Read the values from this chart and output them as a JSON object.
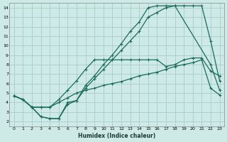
{
  "xlabel": "Humidex (Indice chaleur)",
  "bg_color": "#ceeae6",
  "grid_color": "#a8ccc8",
  "line_color": "#1a6b5a",
  "xlim": [
    -0.5,
    23.5
  ],
  "ylim": [
    1.5,
    14.5
  ],
  "xticks": [
    0,
    1,
    2,
    3,
    4,
    5,
    6,
    7,
    8,
    9,
    10,
    11,
    12,
    13,
    14,
    15,
    16,
    17,
    18,
    19,
    20,
    21,
    22,
    23
  ],
  "yticks": [
    2,
    3,
    4,
    5,
    6,
    7,
    8,
    9,
    10,
    11,
    12,
    13,
    14
  ],
  "line_peak_x": [
    0,
    1,
    2,
    3,
    4,
    5,
    6,
    7,
    8,
    9,
    10,
    11,
    12,
    13,
    14,
    15,
    16,
    17,
    18,
    22,
    23
  ],
  "line_peak_y": [
    4.7,
    4.3,
    3.5,
    2.5,
    2.3,
    2.3,
    3.8,
    4.2,
    5.5,
    6.5,
    7.5,
    8.5,
    9.5,
    10.5,
    11.5,
    13.0,
    13.5,
    14.0,
    14.2,
    8.0,
    5.3
  ],
  "line_mid_x": [
    0,
    1,
    2,
    3,
    4,
    5,
    6,
    7,
    8,
    9,
    10,
    11,
    12,
    13,
    14,
    15,
    16,
    17,
    18,
    19,
    20,
    21,
    22,
    23
  ],
  "line_mid_y": [
    4.7,
    4.3,
    3.5,
    3.5,
    3.5,
    4.3,
    5.3,
    6.3,
    7.5,
    8.5,
    8.5,
    8.5,
    8.5,
    8.5,
    8.5,
    8.5,
    8.5,
    7.8,
    8.0,
    8.5,
    8.7,
    8.7,
    7.3,
    6.8
  ],
  "line_upper_x": [
    0,
    1,
    2,
    3,
    4,
    5,
    6,
    7,
    8,
    9,
    10,
    11,
    12,
    13,
    14,
    15,
    16,
    17,
    18,
    19,
    20,
    21,
    22,
    23
  ],
  "line_upper_y": [
    4.7,
    4.3,
    3.5,
    2.5,
    2.3,
    2.3,
    4.0,
    4.2,
    5.8,
    6.8,
    8.0,
    9.0,
    10.2,
    11.5,
    12.5,
    14.0,
    14.2,
    14.2,
    14.2,
    14.2,
    14.2,
    14.2,
    10.5,
    6.3
  ],
  "line_lower_x": [
    0,
    1,
    2,
    3,
    4,
    5,
    6,
    7,
    8,
    9,
    10,
    11,
    12,
    13,
    14,
    15,
    16,
    17,
    18,
    19,
    20,
    21,
    22,
    23
  ],
  "line_lower_y": [
    4.7,
    4.3,
    3.5,
    3.5,
    3.5,
    4.0,
    4.5,
    5.0,
    5.3,
    5.5,
    5.8,
    6.0,
    6.2,
    6.5,
    6.8,
    7.0,
    7.2,
    7.5,
    7.8,
    8.0,
    8.2,
    8.5,
    5.5,
    4.8
  ]
}
